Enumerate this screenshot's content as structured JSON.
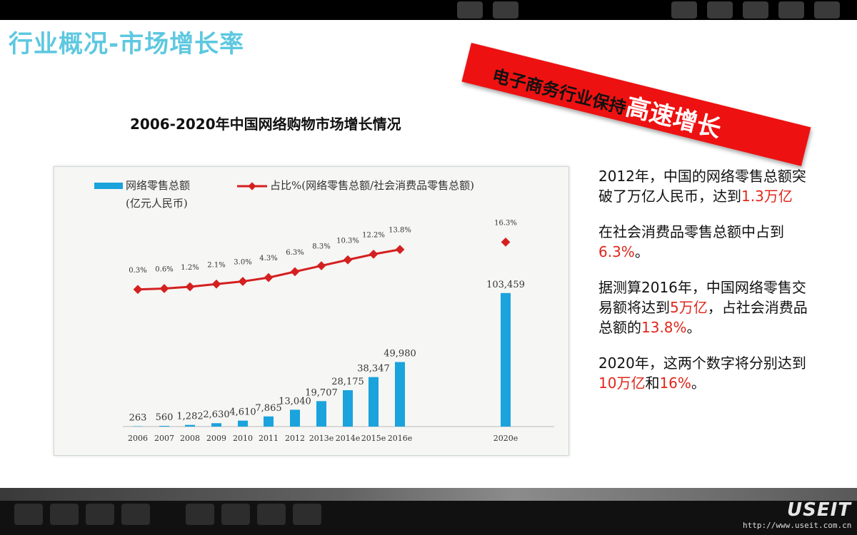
{
  "title": "行业概况-市场增长率",
  "banner": {
    "small": "电子商务行业保持",
    "big": "高速增长"
  },
  "chart_heading": "2006-2020年中国网络购物市场增长情况",
  "chart_data": {
    "type": "bar",
    "categories": [
      "2006",
      "2007",
      "2008",
      "2009",
      "2010",
      "2011",
      "2012",
      "2013e",
      "2014e",
      "2015e",
      "2016e",
      "2020e"
    ],
    "series": [
      {
        "name": "网络零售总额(亿元人民币)",
        "type": "bar",
        "values": [
          263,
          560,
          1282,
          2630,
          4610,
          7865,
          13040,
          19707,
          28175,
          38347,
          49980,
          103459
        ],
        "labels": [
          "263",
          "560",
          "1,282",
          "2,630",
          "4,610",
          "7,865",
          "13,040",
          "19,707",
          "28,175",
          "38,347",
          "49,980",
          "103,459"
        ]
      },
      {
        "name": "占比%(网络零售总额/社会消费品零售总额)",
        "type": "line",
        "values": [
          0.3,
          0.6,
          1.2,
          2.1,
          3.0,
          4.3,
          6.3,
          8.3,
          10.3,
          12.2,
          13.8,
          16.3
        ],
        "labels": [
          "0.3%",
          "0.6%",
          "1.2%",
          "2.1%",
          "3.0%",
          "4.3%",
          "6.3%",
          "8.3%",
          "10.3%",
          "12.2%",
          "13.8%",
          "16.3%"
        ]
      }
    ],
    "legend": {
      "bar_label_line1": "网络零售总额",
      "bar_label_line2": "(亿元人民币)",
      "line_label": "占比%(网络零售总额/社会消费品零售总额)"
    },
    "legend_position": "top",
    "bar_color": "#1aa3dc",
    "line_color": "#d42020"
  },
  "notes": [
    [
      {
        "t": "2012年，中国的网络零售总额突破了万亿人民币，达到"
      },
      {
        "t": "1.3万亿",
        "hl": true
      }
    ],
    [
      {
        "t": "在社会消费品零售总额中占到"
      },
      {
        "t": "6.3%",
        "hl": true
      },
      {
        "t": "。"
      }
    ],
    [
      {
        "t": "据测算2016年，中国网络零售交易额将达到"
      },
      {
        "t": "5万亿",
        "hl": true
      },
      {
        "t": "，占社会消费品总额的"
      },
      {
        "t": "13.8%",
        "hl": true
      },
      {
        "t": "。"
      }
    ],
    [
      {
        "t": "2020年，这两个数字将分别达到"
      },
      {
        "t": "10万亿",
        "hl": true
      },
      {
        "t": "和"
      },
      {
        "t": "16%",
        "hl": true
      },
      {
        "t": "。"
      }
    ]
  ],
  "footer": {
    "logo": "USEIT",
    "url": "http://www.useit.com.cn"
  },
  "colors": {
    "title": "#5ec8e0",
    "highlight": "#e0271b",
    "banner": "#ee1111"
  }
}
